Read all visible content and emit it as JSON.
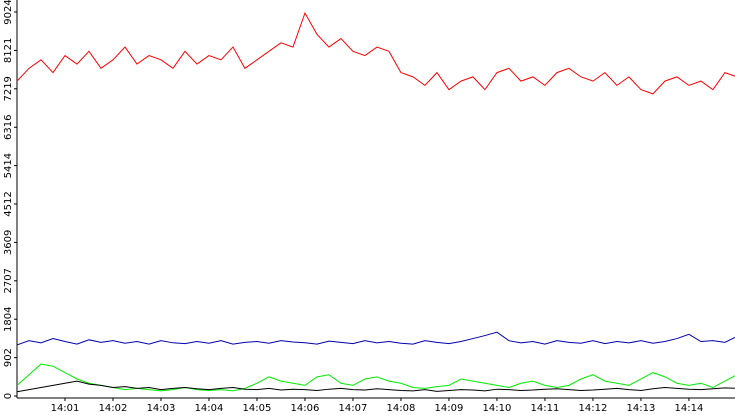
{
  "chart_data": {
    "type": "line",
    "x": [
      0,
      0.25,
      0.5,
      0.75,
      1,
      1.25,
      1.5,
      1.75,
      2,
      2.25,
      2.5,
      2.75,
      3,
      3.25,
      3.5,
      3.75,
      4,
      4.25,
      4.5,
      4.75,
      5,
      5.25,
      5.5,
      5.75,
      6,
      6.25,
      6.5,
      6.75,
      7,
      7.25,
      7.5,
      7.75,
      8,
      8.25,
      8.5,
      8.75,
      9,
      9.25,
      9.5,
      9.75,
      10,
      10.25,
      10.5,
      10.75,
      11,
      11.25,
      11.5,
      11.75,
      12,
      12.25,
      12.5,
      12.75,
      13,
      13.25,
      13.5,
      13.75,
      14,
      14.25,
      14.5,
      14.75,
      15
    ],
    "series": [
      {
        "color": "#ff0000",
        "values": [
          7400,
          7700,
          7900,
          7600,
          8000,
          7800,
          8100,
          7700,
          7900,
          8200,
          7800,
          8000,
          7900,
          7700,
          8100,
          7800,
          8000,
          7900,
          8200,
          7700,
          7900,
          8100,
          8300,
          8200,
          9000,
          8500,
          8200,
          8400,
          8100,
          8000,
          8200,
          8100,
          7600,
          7500,
          7300,
          7600,
          7200,
          7400,
          7500,
          7200,
          7600,
          7700,
          7400,
          7500,
          7300,
          7600,
          7700,
          7500,
          7400,
          7600,
          7300,
          7500,
          7200,
          7100,
          7400,
          7500,
          7300,
          7400,
          7200,
          7600,
          7500
        ]
      },
      {
        "color": "#0000aa",
        "values": [
          1200,
          1300,
          1250,
          1350,
          1280,
          1220,
          1320,
          1260,
          1300,
          1240,
          1280,
          1220,
          1300,
          1250,
          1230,
          1280,
          1240,
          1300,
          1220,
          1260,
          1280,
          1240,
          1300,
          1270,
          1250,
          1220,
          1290,
          1260,
          1230,
          1300,
          1250,
          1280,
          1240,
          1220,
          1300,
          1260,
          1230,
          1280,
          1350,
          1420,
          1500,
          1300,
          1250,
          1280,
          1220,
          1300,
          1260,
          1240,
          1300,
          1230,
          1280,
          1250,
          1300,
          1240,
          1280,
          1350,
          1450,
          1280,
          1300,
          1260,
          1400
        ]
      },
      {
        "color": "#00ee00",
        "values": [
          250,
          500,
          750,
          700,
          550,
          400,
          300,
          250,
          200,
          150,
          180,
          150,
          120,
          150,
          200,
          150,
          130,
          150,
          120,
          180,
          300,
          450,
          350,
          300,
          250,
          450,
          500,
          300,
          250,
          400,
          450,
          350,
          300,
          200,
          180,
          220,
          250,
          400,
          350,
          300,
          250,
          200,
          300,
          350,
          250,
          200,
          250,
          400,
          500,
          350,
          300,
          250,
          400,
          550,
          450,
          300,
          250,
          300,
          200,
          350,
          500
        ]
      },
      {
        "color": "#000000",
        "values": [
          100,
          150,
          200,
          250,
          300,
          350,
          280,
          250,
          200,
          220,
          180,
          200,
          150,
          180,
          200,
          170,
          150,
          180,
          200,
          160,
          150,
          180,
          140,
          160,
          150,
          130,
          160,
          180,
          150,
          140,
          170,
          150,
          130,
          120,
          150,
          110,
          130,
          150,
          140,
          120,
          160,
          150,
          130,
          140,
          160,
          170,
          150,
          130,
          140,
          160,
          180,
          150,
          130,
          170,
          200,
          180,
          160,
          150,
          170,
          190,
          180
        ]
      }
    ],
    "xlim": [
      0,
      14.96
    ],
    "xticks": [
      {
        "value": 1,
        "label": "14:01"
      },
      {
        "value": 2,
        "label": "14:02"
      },
      {
        "value": 3,
        "label": "14:03"
      },
      {
        "value": 4,
        "label": "14:04"
      },
      {
        "value": 5,
        "label": "14:05"
      },
      {
        "value": 6,
        "label": "14:06"
      },
      {
        "value": 7,
        "label": "14:07"
      },
      {
        "value": 8,
        "label": "14:08"
      },
      {
        "value": 9,
        "label": "14:09"
      },
      {
        "value": 10,
        "label": "14:10"
      },
      {
        "value": 11,
        "label": "14:11"
      },
      {
        "value": 12,
        "label": "14:12"
      },
      {
        "value": 13,
        "label": "14:13"
      },
      {
        "value": 14,
        "label": "14:14"
      }
    ],
    "ylim": [
      0,
      9024
    ],
    "yticks": [
      0,
      902,
      1804,
      2707,
      3609,
      4512,
      5414,
      6316,
      7219,
      8121,
      9024
    ],
    "grid": false
  }
}
